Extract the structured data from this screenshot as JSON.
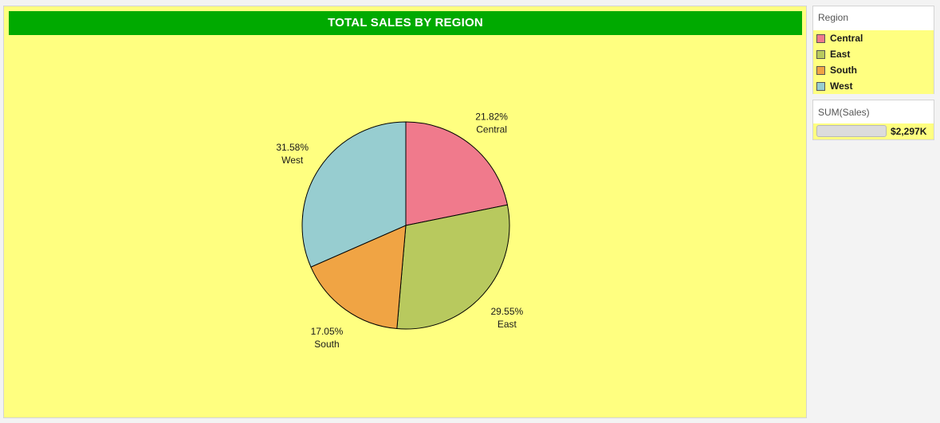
{
  "title": "TOTAL SALES BY REGION",
  "legend": {
    "title": "Region",
    "items": [
      {
        "label": "Central",
        "color": "#f07a8c"
      },
      {
        "label": "East",
        "color": "#b8c95e"
      },
      {
        "label": "South",
        "color": "#f0a444"
      },
      {
        "label": "West",
        "color": "#97cdd0"
      }
    ]
  },
  "size_legend": {
    "title": "SUM(Sales)",
    "value_label": "$2,297K"
  },
  "colors": {
    "panel_background": "#ffff80",
    "title_background": "#00aa00"
  },
  "chart_data": {
    "type": "pie",
    "title": "TOTAL SALES BY REGION",
    "categories": [
      "Central",
      "East",
      "South",
      "West"
    ],
    "values": [
      21.82,
      29.55,
      17.05,
      31.58
    ],
    "value_labels": [
      "21.82%",
      "29.55%",
      "17.05%",
      "31.58%"
    ],
    "colors": [
      "#f07a8c",
      "#b8c95e",
      "#f0a444",
      "#97cdd0"
    ],
    "legend_position": "right"
  }
}
